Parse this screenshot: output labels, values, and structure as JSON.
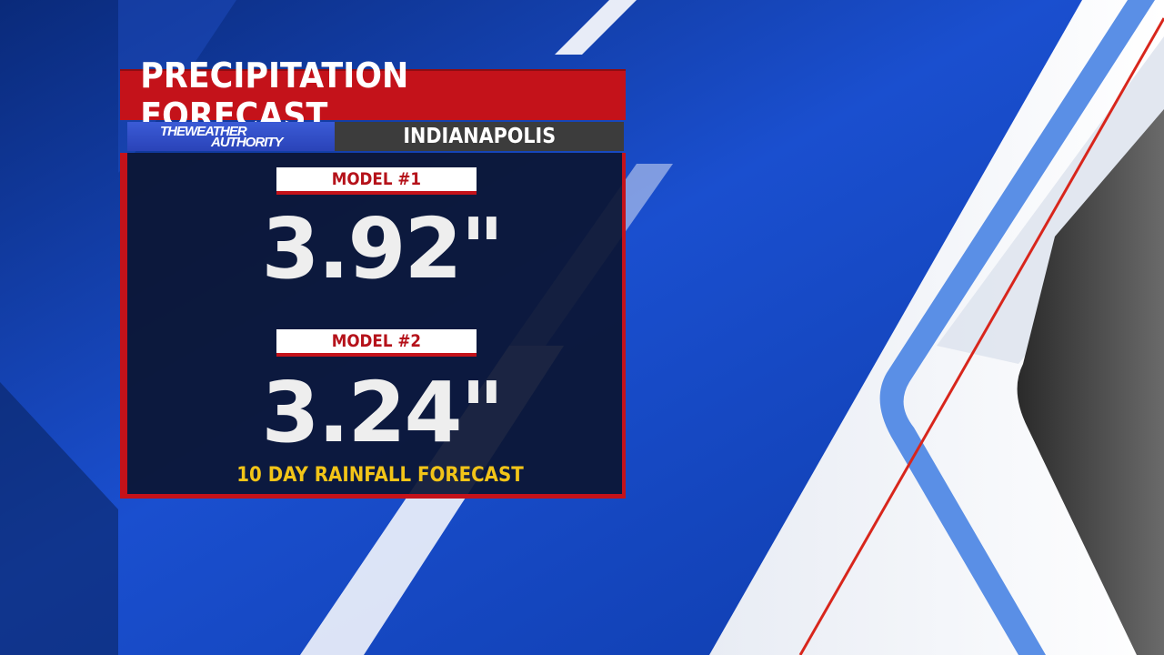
{
  "graphic": {
    "title": "PRECIPITATION FORECAST",
    "logo": {
      "line1": "THEWEATHER",
      "line2": "AUTHORITY"
    },
    "location": "INDIANAPOLIS",
    "models": [
      {
        "label": "MODEL #1",
        "value": "3.92\""
      },
      {
        "label": "MODEL #2",
        "value": "3.24\""
      }
    ],
    "footer": "10 DAY RAINFALL FORECAST"
  },
  "colors": {
    "brand_red": "#c4121a",
    "panel_navy": "#0c1634",
    "logo_blue": "#2a43b8",
    "location_gray": "#3c3c3c",
    "footer_yellow": "#f2c418",
    "background_blue": "#1b55d6"
  }
}
